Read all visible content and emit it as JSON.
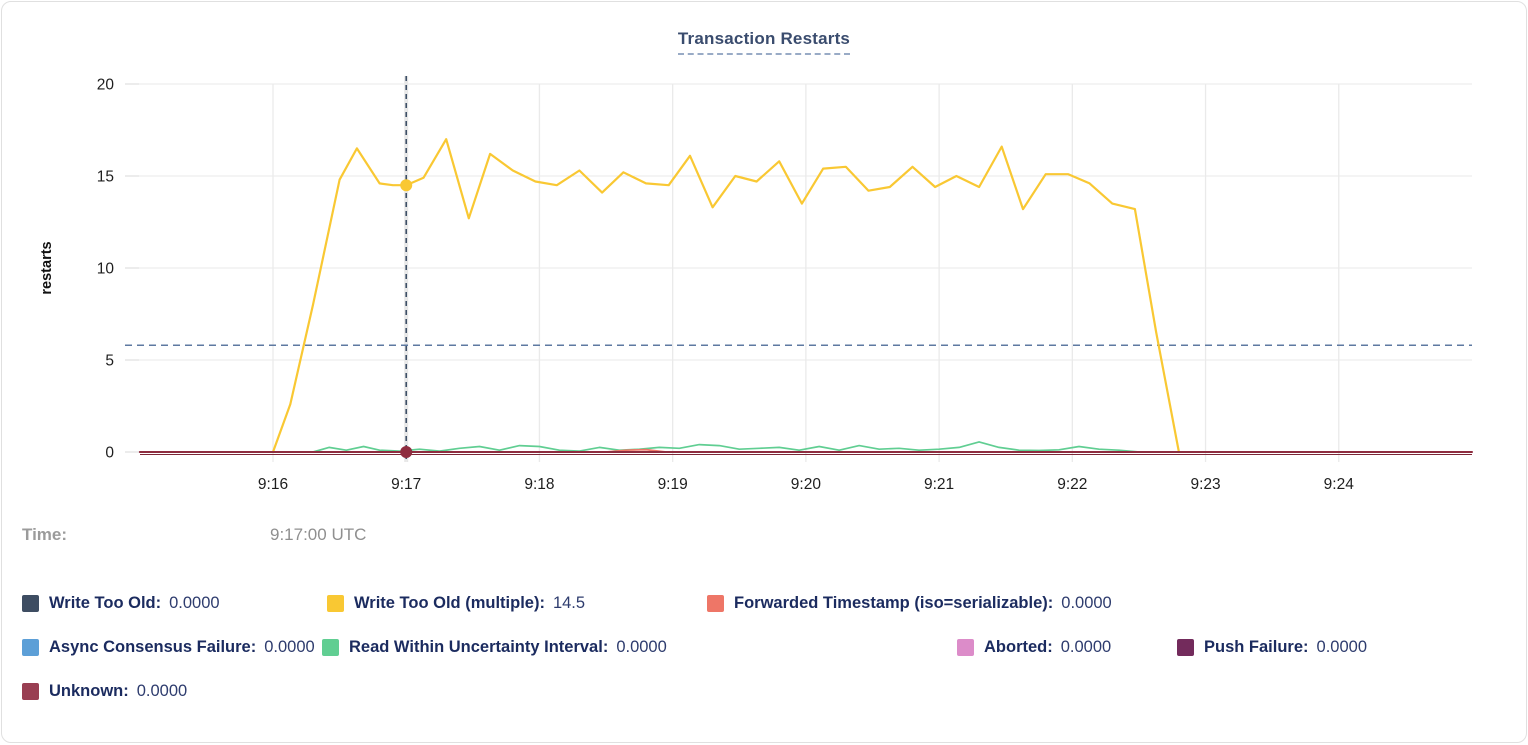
{
  "time_row": {
    "label": "Time:",
    "value": "9:17:00 UTC"
  },
  "chart_data": {
    "type": "line",
    "title": "Transaction Restarts",
    "xlabel": "",
    "ylabel": "restarts",
    "ylim": [
      0,
      20
    ],
    "yticks": [
      0,
      5,
      10,
      15,
      20
    ],
    "xticks": [
      {
        "m": 0,
        "label": "9:16"
      },
      {
        "m": 1,
        "label": "9:17"
      },
      {
        "m": 2,
        "label": "9:18"
      },
      {
        "m": 3,
        "label": "9:19"
      },
      {
        "m": 4,
        "label": "9:20"
      },
      {
        "m": 5,
        "label": "9:21"
      },
      {
        "m": 6,
        "label": "9:22"
      },
      {
        "m": 7,
        "label": "9:23"
      },
      {
        "m": 8,
        "label": "9:24"
      }
    ],
    "x_domain_minutes": [
      -1,
      9
    ],
    "grid": true,
    "legend_position": "bottom",
    "threshold_line": {
      "y": 5.8,
      "style": "dashed",
      "color": "#5e79a1"
    },
    "crosshair": {
      "m": 1,
      "time": "9:17:00 UTC",
      "color": "#3d4f66"
    },
    "series": [
      {
        "name": "Write Too Old (multiple)",
        "color": "#f9c833",
        "hover_value": 14.5,
        "dot": [
          1,
          14.5
        ],
        "points": [
          [
            0,
            0
          ],
          [
            0.13,
            2.6
          ],
          [
            0.3,
            8.0
          ],
          [
            0.5,
            14.8
          ],
          [
            0.63,
            16.5
          ],
          [
            0.8,
            14.6
          ],
          [
            0.9,
            14.5
          ],
          [
            1.0,
            14.5
          ],
          [
            1.13,
            14.9
          ],
          [
            1.3,
            17.0
          ],
          [
            1.47,
            12.7
          ],
          [
            1.63,
            16.2
          ],
          [
            1.8,
            15.3
          ],
          [
            1.97,
            14.7
          ],
          [
            2.13,
            14.5
          ],
          [
            2.3,
            15.3
          ],
          [
            2.47,
            14.1
          ],
          [
            2.63,
            15.2
          ],
          [
            2.8,
            14.6
          ],
          [
            2.97,
            14.5
          ],
          [
            3.13,
            16.1
          ],
          [
            3.3,
            13.3
          ],
          [
            3.47,
            15.0
          ],
          [
            3.63,
            14.7
          ],
          [
            3.8,
            15.8
          ],
          [
            3.97,
            13.5
          ],
          [
            4.13,
            15.4
          ],
          [
            4.3,
            15.5
          ],
          [
            4.47,
            14.2
          ],
          [
            4.63,
            14.4
          ],
          [
            4.8,
            15.5
          ],
          [
            4.97,
            14.4
          ],
          [
            5.13,
            15.0
          ],
          [
            5.3,
            14.4
          ],
          [
            5.47,
            16.6
          ],
          [
            5.63,
            13.2
          ],
          [
            5.8,
            15.1
          ],
          [
            5.97,
            15.1
          ],
          [
            6.13,
            14.6
          ],
          [
            6.3,
            13.5
          ],
          [
            6.47,
            13.2
          ],
          [
            6.63,
            6.5
          ],
          [
            6.8,
            0
          ]
        ]
      },
      {
        "name": "Read Within Uncertainty Interval",
        "color": "#60ce92",
        "hover_value": 0,
        "points": [
          [
            0.3,
            0
          ],
          [
            0.42,
            0.25
          ],
          [
            0.55,
            0.1
          ],
          [
            0.68,
            0.3
          ],
          [
            0.8,
            0.1
          ],
          [
            0.95,
            0.05
          ],
          [
            1.1,
            0.15
          ],
          [
            1.25,
            0.05
          ],
          [
            1.4,
            0.2
          ],
          [
            1.55,
            0.3
          ],
          [
            1.7,
            0.1
          ],
          [
            1.85,
            0.35
          ],
          [
            2.0,
            0.3
          ],
          [
            2.15,
            0.1
          ],
          [
            2.3,
            0.05
          ],
          [
            2.45,
            0.25
          ],
          [
            2.6,
            0.1
          ],
          [
            2.75,
            0.15
          ],
          [
            2.9,
            0.25
          ],
          [
            3.05,
            0.2
          ],
          [
            3.2,
            0.4
          ],
          [
            3.35,
            0.35
          ],
          [
            3.5,
            0.15
          ],
          [
            3.65,
            0.2
          ],
          [
            3.8,
            0.25
          ],
          [
            3.95,
            0.1
          ],
          [
            4.1,
            0.3
          ],
          [
            4.25,
            0.1
          ],
          [
            4.4,
            0.35
          ],
          [
            4.55,
            0.15
          ],
          [
            4.7,
            0.2
          ],
          [
            4.85,
            0.1
          ],
          [
            5.0,
            0.15
          ],
          [
            5.15,
            0.25
          ],
          [
            5.3,
            0.55
          ],
          [
            5.45,
            0.25
          ],
          [
            5.6,
            0.1
          ],
          [
            5.75,
            0.08
          ],
          [
            5.9,
            0.12
          ],
          [
            6.05,
            0.3
          ],
          [
            6.2,
            0.15
          ],
          [
            6.35,
            0.1
          ],
          [
            6.5,
            0
          ]
        ]
      },
      {
        "name": "Forwarded Timestamp (iso=serializable)",
        "color": "#ee7667",
        "hover_value": 0,
        "points": [
          [
            2.5,
            0
          ],
          [
            2.65,
            0.1
          ],
          [
            2.8,
            0.13
          ],
          [
            2.95,
            0
          ]
        ]
      },
      {
        "name": "Unknown",
        "color": "#8e2c3f",
        "hover_value": 0,
        "dot": [
          1,
          0
        ],
        "points": [
          [
            -1,
            0
          ],
          [
            9,
            0
          ]
        ]
      }
    ]
  },
  "legend": {
    "rows": [
      {
        "cls": "r1",
        "items": [
          {
            "label": "Write Too Old:",
            "value": "0.0000",
            "color": "#3e4d62"
          },
          {
            "label": "Write Too Old (multiple):",
            "value": "14.5",
            "color": "#f9c833"
          },
          {
            "label": "Forwarded Timestamp (iso=serializable):",
            "value": "0.0000",
            "color": "#ee7667"
          }
        ]
      },
      {
        "cls": "r2",
        "items": [
          {
            "label": "Async Consensus Failure:",
            "value": "0.0000",
            "color": "#5c9fd7"
          },
          {
            "label": "Read Within Uncertainty Interval:",
            "value": "0.0000",
            "color": "#60ce92"
          },
          {
            "label": "Aborted:",
            "value": "0.0000",
            "color": "#dc8cc9"
          },
          {
            "label": "Push Failure:",
            "value": "0.0000",
            "color": "#732b5c"
          }
        ]
      },
      {
        "cls": "r3",
        "items": [
          {
            "label": "Unknown:",
            "value": "0.0000",
            "color": "#993e52"
          }
        ]
      }
    ]
  }
}
